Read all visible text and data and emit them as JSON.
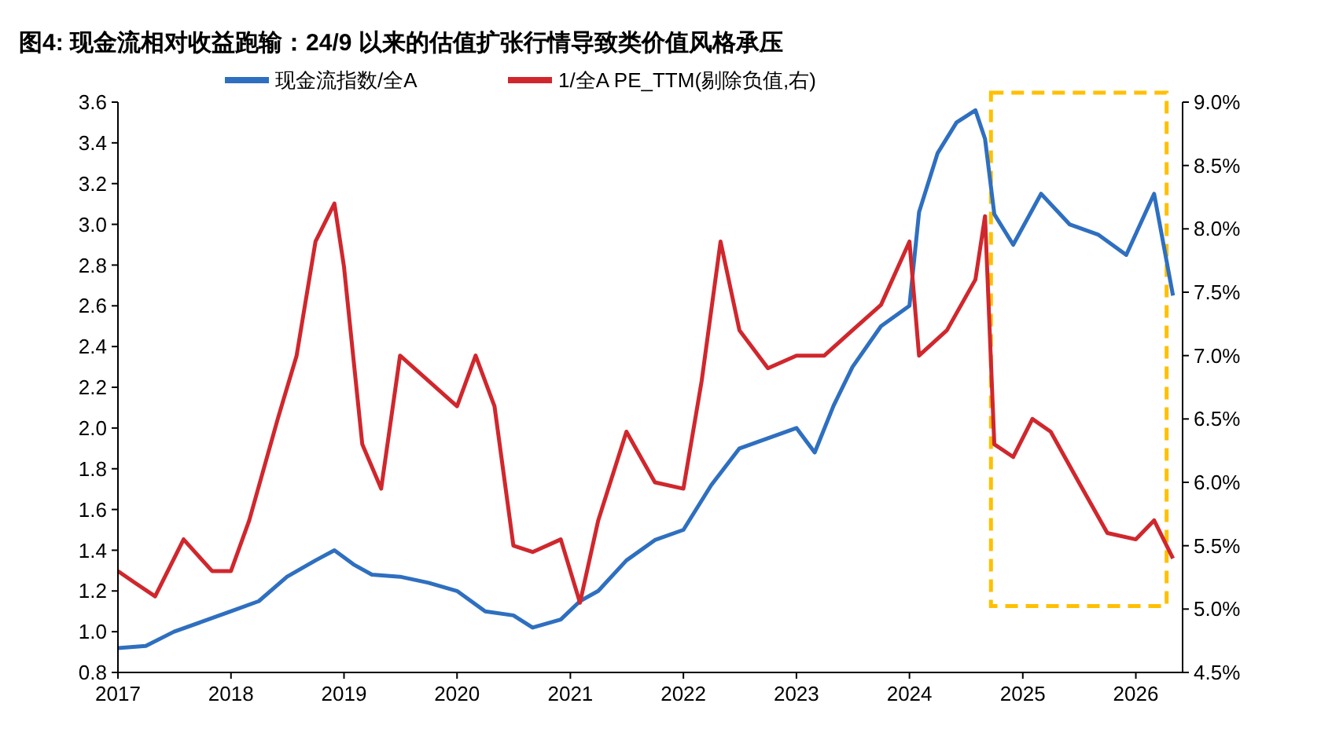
{
  "chart_data": {
    "type": "line",
    "title": "图4: 现金流相对收益跑输：24/9 以来的估值扩张行情导致类价值风格承压",
    "xlim": [
      "2017-01",
      "2026-06"
    ],
    "xticks": [
      {
        "value": "2017-01",
        "label": "2017"
      },
      {
        "value": "2018-01",
        "label": "2018"
      },
      {
        "value": "2019-01",
        "label": "2019"
      },
      {
        "value": "2020-01",
        "label": "2020"
      },
      {
        "value": "2021-01",
        "label": "2021"
      },
      {
        "value": "2022-01",
        "label": "2022"
      },
      {
        "value": "2023-01",
        "label": "2023"
      },
      {
        "value": "2024-01",
        "label": "2024"
      },
      {
        "value": "2025-01",
        "label": "2025"
      },
      {
        "value": "2026-01",
        "label": "2026"
      }
    ],
    "ylim": [
      0.8,
      3.6
    ],
    "yticks": [
      {
        "value": 0.8,
        "label": "0.8"
      },
      {
        "value": 1.0,
        "label": "1.0"
      },
      {
        "value": 1.2,
        "label": "1.2"
      },
      {
        "value": 1.4,
        "label": "1.4"
      },
      {
        "value": 1.6,
        "label": "1.6"
      },
      {
        "value": 1.8,
        "label": "1.8"
      },
      {
        "value": 2.0,
        "label": "2.0"
      },
      {
        "value": 2.2,
        "label": "2.2"
      },
      {
        "value": 2.4,
        "label": "2.4"
      },
      {
        "value": 2.6,
        "label": "2.6"
      },
      {
        "value": 2.8,
        "label": "2.8"
      },
      {
        "value": 3.0,
        "label": "3.0"
      },
      {
        "value": 3.2,
        "label": "3.2"
      },
      {
        "value": 3.4,
        "label": "3.4"
      },
      {
        "value": 3.6,
        "label": "3.6"
      }
    ],
    "y2lim": [
      4.5,
      9.0
    ],
    "y2ticks": [
      {
        "value": 4.5,
        "label": "4.5%"
      },
      {
        "value": 5.0,
        "label": "5.0%"
      },
      {
        "value": 5.5,
        "label": "5.5%"
      },
      {
        "value": 6.0,
        "label": "6.0%"
      },
      {
        "value": 6.5,
        "label": "6.5%"
      },
      {
        "value": 7.0,
        "label": "7.0%"
      },
      {
        "value": 7.5,
        "label": "7.5%"
      },
      {
        "value": 8.0,
        "label": "8.0%"
      },
      {
        "value": 8.5,
        "label": "8.5%"
      },
      {
        "value": 9.0,
        "label": "9.0%"
      }
    ],
    "legend": "top",
    "grid": false,
    "line_style": "solid",
    "series": [
      {
        "name": "现金流指数/全A",
        "color": "#2e6fc0",
        "x": [
          "2017-01",
          "2017-04",
          "2017-07",
          "2017-10",
          "2018-01",
          "2018-04",
          "2018-07",
          "2018-10",
          "2018-12",
          "2019-02",
          "2019-04",
          "2019-07",
          "2019-10",
          "2020-01",
          "2020-04",
          "2020-07",
          "2020-09",
          "2020-12",
          "2021-02",
          "2021-04",
          "2021-07",
          "2021-10",
          "2022-01",
          "2022-04",
          "2022-07",
          "2022-10",
          "2023-01",
          "2023-03",
          "2023-05",
          "2023-07",
          "2023-10",
          "2024-01",
          "2024-02",
          "2024-04",
          "2024-06",
          "2024-08",
          "2024-09",
          "2024-10",
          "2024-12",
          "2025-03",
          "2025-06",
          "2025-09",
          "2025-12",
          "2026-03",
          "2026-05"
        ],
        "values": [
          0.92,
          0.93,
          1.0,
          1.05,
          1.1,
          1.15,
          1.27,
          1.35,
          1.4,
          1.33,
          1.28,
          1.27,
          1.24,
          1.2,
          1.1,
          1.08,
          1.02,
          1.06,
          1.15,
          1.2,
          1.35,
          1.45,
          1.5,
          1.72,
          1.9,
          1.95,
          2.0,
          1.88,
          2.11,
          2.3,
          2.5,
          2.6,
          3.06,
          3.35,
          3.5,
          3.56,
          3.42,
          3.05,
          2.9,
          3.15,
          3.0,
          2.95,
          2.85,
          3.15,
          2.65
        ]
      },
      {
        "name": "1/全A PE_TTM(剔除负值,右)",
        "color": "#d0272d",
        "axis": "y2",
        "x": [
          "2017-01",
          "2017-03",
          "2017-05",
          "2017-08",
          "2017-11",
          "2018-01",
          "2018-03",
          "2018-06",
          "2018-08",
          "2018-10",
          "2018-12",
          "2019-01",
          "2019-03",
          "2019-05",
          "2019-07",
          "2019-10",
          "2020-01",
          "2020-03",
          "2020-05",
          "2020-07",
          "2020-09",
          "2020-12",
          "2021-02",
          "2021-04",
          "2021-07",
          "2021-10",
          "2022-01",
          "2022-03",
          "2022-05",
          "2022-07",
          "2022-10",
          "2023-01",
          "2023-04",
          "2023-07",
          "2023-10",
          "2024-01",
          "2024-02",
          "2024-05",
          "2024-08",
          "2024-09",
          "2024-10",
          "2024-12",
          "2025-02",
          "2025-04",
          "2025-07",
          "2025-10",
          "2026-01",
          "2026-03",
          "2026-05"
        ],
        "values": [
          5.3,
          5.2,
          5.1,
          5.55,
          5.3,
          5.3,
          5.7,
          6.5,
          7.0,
          7.9,
          8.2,
          7.7,
          6.3,
          5.95,
          7.0,
          6.8,
          6.6,
          7.0,
          6.6,
          5.5,
          5.45,
          5.55,
          5.05,
          5.7,
          6.4,
          6.0,
          5.95,
          6.8,
          7.9,
          7.2,
          6.9,
          7.0,
          7.0,
          7.2,
          7.4,
          7.9,
          7.0,
          7.2,
          7.6,
          8.1,
          6.3,
          6.2,
          6.5,
          6.4,
          6.0,
          5.6,
          5.55,
          5.7,
          5.4
        ]
      }
    ]
  }
}
